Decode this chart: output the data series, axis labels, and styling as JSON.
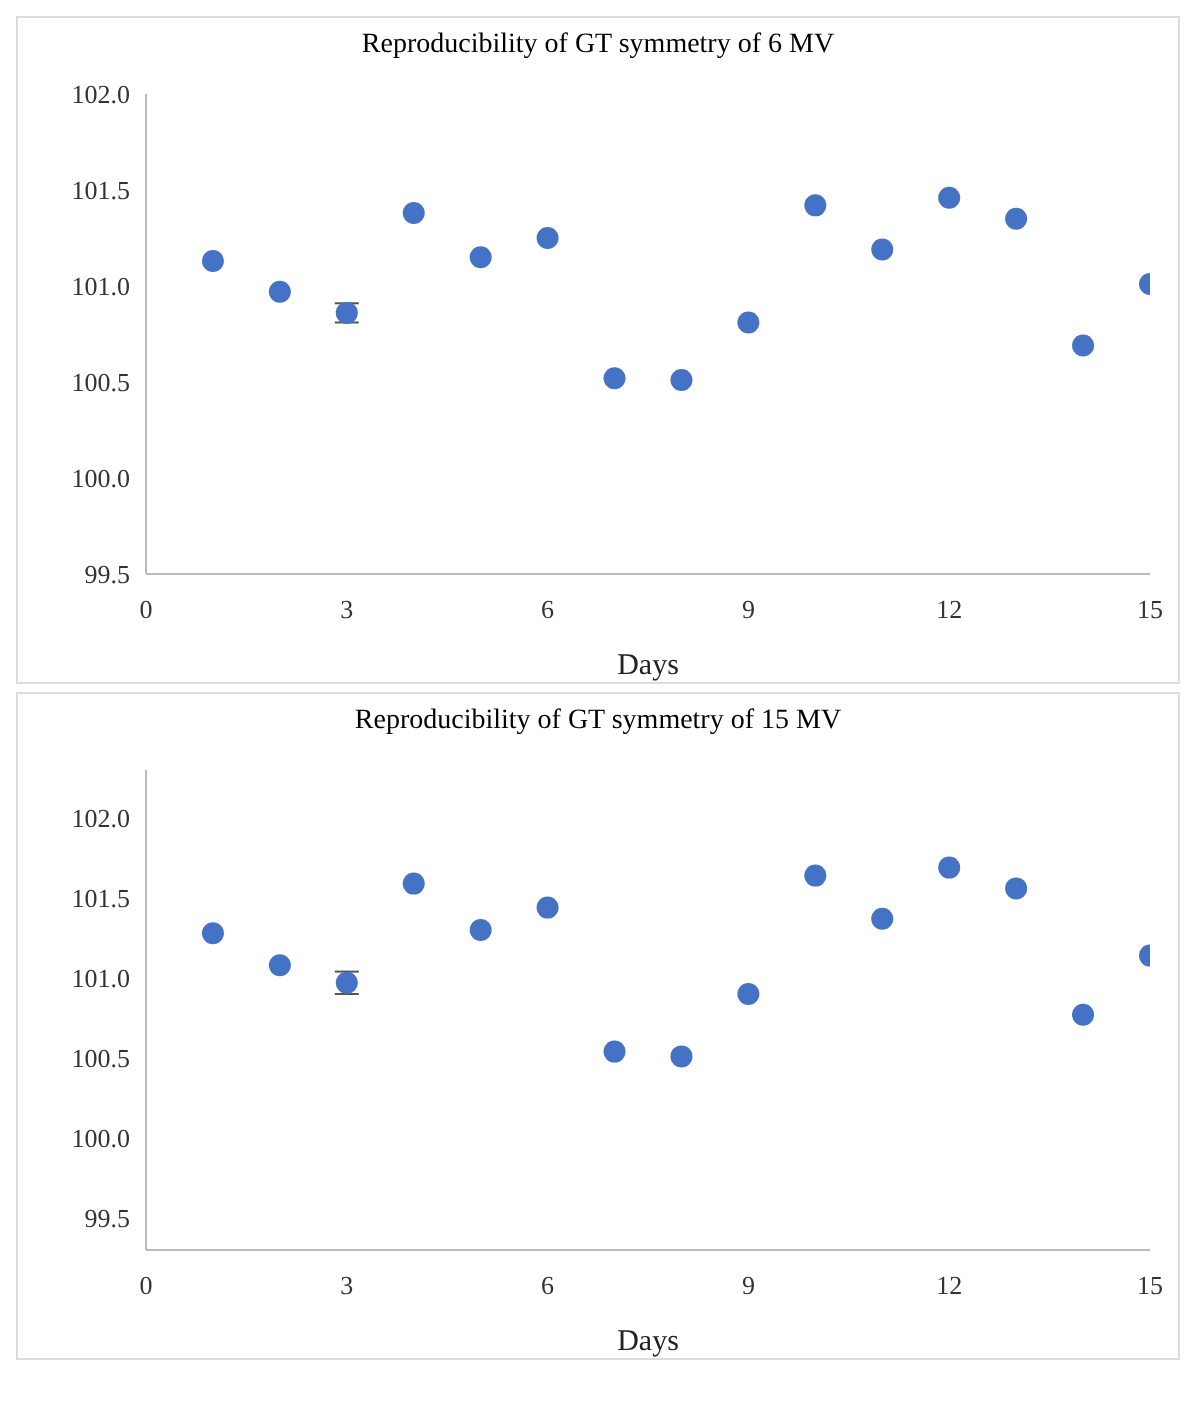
{
  "chart_data": [
    {
      "type": "scatter",
      "title": "Reproducibility of GT symmetry of 6 MV",
      "xlabel": "Days",
      "x": [
        1,
        2,
        3,
        4,
        5,
        6,
        7,
        8,
        9,
        10,
        11,
        12,
        13,
        14,
        15
      ],
      "series": [
        {
          "color": "#4472c4",
          "values": [
            101.13,
            100.97,
            100.86,
            101.38,
            101.15,
            101.25,
            100.52,
            100.51,
            100.81,
            101.42,
            101.19,
            101.46,
            101.35,
            100.69,
            101.01
          ],
          "errors": [
            null,
            null,
            0.05,
            null,
            null,
            null,
            null,
            null,
            null,
            null,
            null,
            null,
            null,
            null,
            null
          ]
        }
      ],
      "xlim": [
        0,
        15
      ],
      "xticks": [
        0,
        3,
        6,
        9,
        12,
        15
      ],
      "ylim": [
        99.5,
        102.0
      ],
      "yticks": [
        {
          "value": 99.5,
          "label": "99.5"
        },
        {
          "value": 100,
          "label": "100.0"
        },
        {
          "value": 100.5,
          "label": "100.5"
        },
        {
          "value": 101,
          "label": "101.0"
        },
        {
          "value": 101.5,
          "label": "101.5"
        },
        {
          "value": 102,
          "label": "102.0"
        }
      ],
      "grid": false,
      "marker": "circle"
    },
    {
      "type": "scatter",
      "title": "Reproducibility of GT symmetry of 15 MV",
      "xlabel": "Days",
      "x": [
        1,
        2,
        3,
        4,
        5,
        6,
        7,
        8,
        9,
        10,
        11,
        12,
        13,
        14,
        15
      ],
      "series": [
        {
          "color": "#4472c4",
          "values": [
            101.28,
            101.08,
            100.97,
            101.59,
            101.3,
            101.44,
            100.54,
            100.51,
            100.9,
            101.64,
            101.37,
            101.69,
            101.56,
            100.77,
            101.14
          ],
          "errors": [
            null,
            null,
            0.07,
            null,
            null,
            null,
            null,
            null,
            null,
            null,
            null,
            null,
            null,
            null,
            null
          ]
        }
      ],
      "xlim": [
        0,
        15
      ],
      "xticks": [
        0,
        3,
        6,
        9,
        12,
        15
      ],
      "ylim": [
        99.3,
        102.3
      ],
      "yticks": [
        {
          "value": 99.5,
          "label": "99.5"
        },
        {
          "value": 100,
          "label": "100.0"
        },
        {
          "value": 100.5,
          "label": "100.5"
        },
        {
          "value": 101,
          "label": "101.0"
        },
        {
          "value": 101.5,
          "label": "101.5"
        },
        {
          "value": 102,
          "label": "102.0"
        }
      ],
      "grid": false,
      "marker": "circle"
    }
  ]
}
